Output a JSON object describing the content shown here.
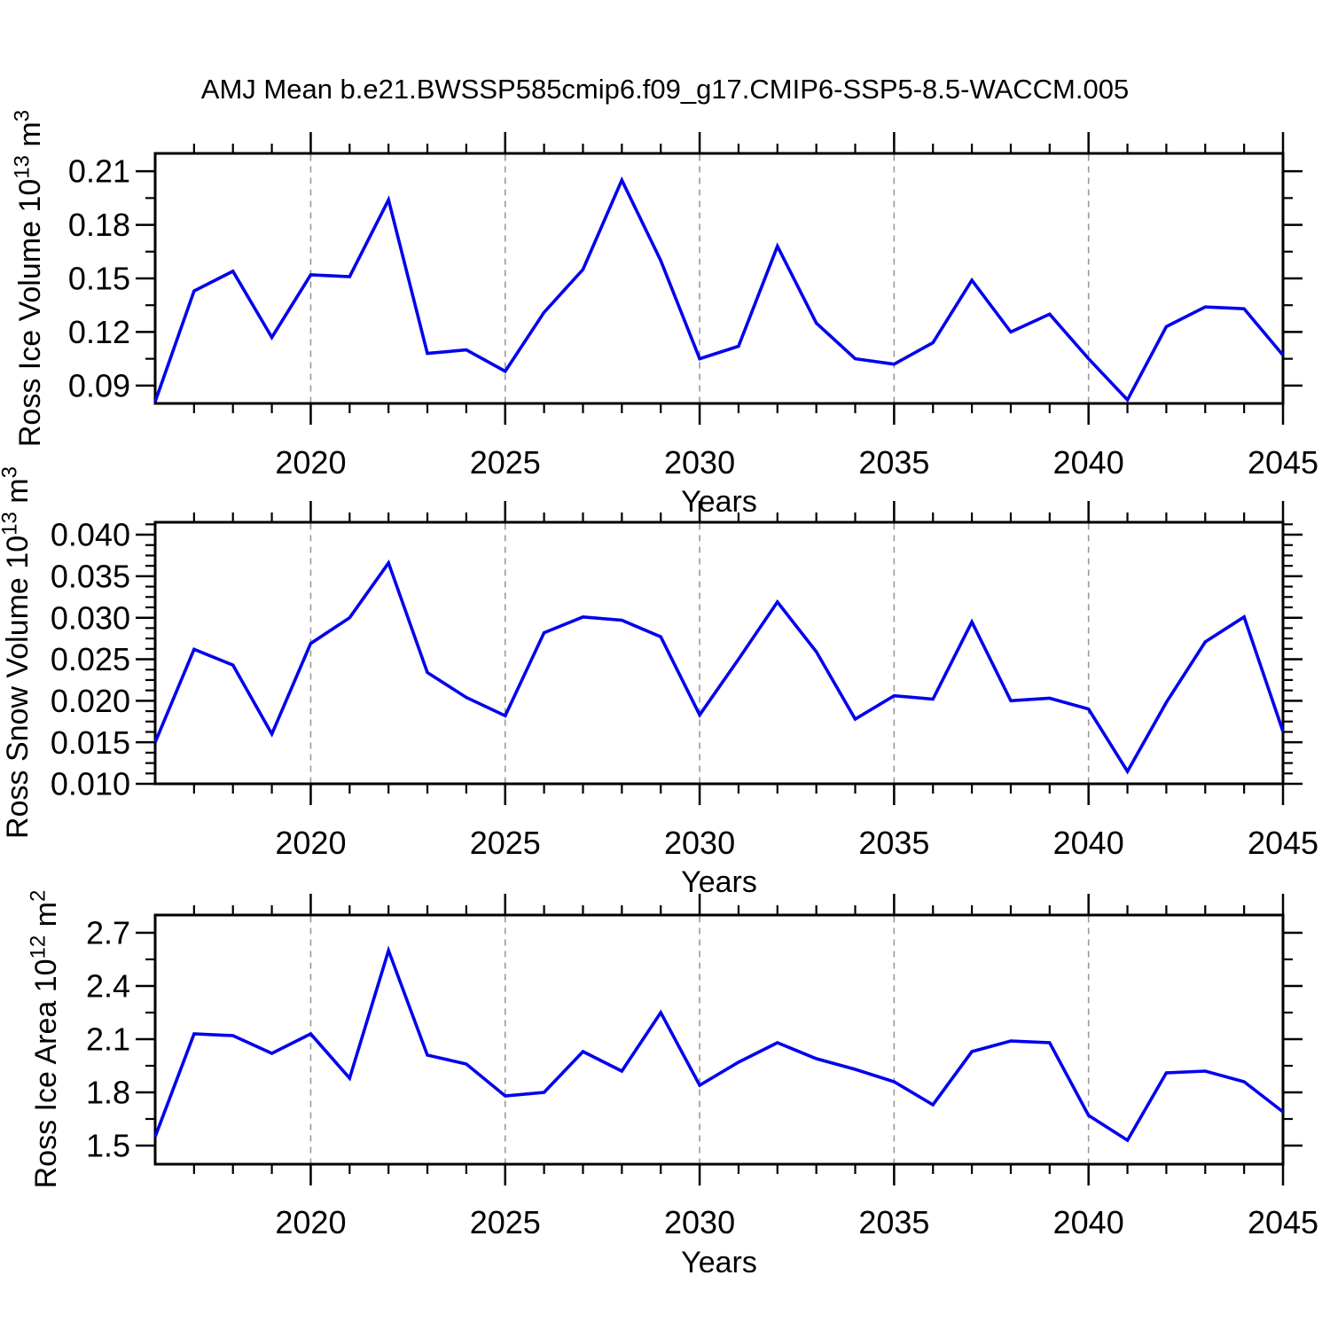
{
  "page": {
    "title": "AMJ Mean b.e21.BWSSP585cmip6.f09_g17.CMIP6-SSP5-8.5-WACCM.005",
    "background": "#ffffff"
  },
  "style": {
    "line_color": "#0000ee",
    "axis_color": "#000000",
    "grid_color": "#999999",
    "text_color": "#000000"
  },
  "chart_data": [
    {
      "type": "line",
      "name": "ross-ice-volume",
      "title": "AMJ Mean b.e21.BWSSP585cmip6.f09_g17.CMIP6-SSP5-8.5-WACCM.005",
      "xlabel": "Years",
      "ylabel": {
        "base": "Ross Ice Volume 10",
        "sup1": "13",
        "unit": " m",
        "sup2": "3",
        "plain": "Ross Ice Volume 10^13 m^3"
      },
      "xlim": [
        2016,
        2045
      ],
      "ylim": [
        0.08,
        0.22
      ],
      "x": [
        2016,
        2017,
        2018,
        2019,
        2020,
        2021,
        2022,
        2023,
        2024,
        2025,
        2026,
        2027,
        2028,
        2029,
        2030,
        2031,
        2032,
        2033,
        2034,
        2035,
        2036,
        2037,
        2038,
        2039,
        2040,
        2041,
        2042,
        2043,
        2044,
        2045
      ],
      "values": [
        0.081,
        0.143,
        0.154,
        0.117,
        0.152,
        0.151,
        0.194,
        0.108,
        0.11,
        0.098,
        0.131,
        0.155,
        0.205,
        0.16,
        0.105,
        0.112,
        0.168,
        0.125,
        0.105,
        0.102,
        0.114,
        0.149,
        0.12,
        0.13,
        0.105,
        0.082,
        0.123,
        0.134,
        0.133,
        0.107
      ],
      "yticks": [
        0.09,
        0.12,
        0.15,
        0.18,
        0.21
      ],
      "yticklabels": [
        "0.09",
        "0.12",
        "0.15",
        "0.18",
        "0.21"
      ],
      "yminorticks": [
        0.105,
        0.135,
        0.165,
        0.195
      ],
      "xticks": [
        2020,
        2025,
        2030,
        2035,
        2040,
        2045
      ],
      "xticklabels": [
        "2020",
        "2025",
        "2030",
        "2035",
        "2040",
        "2045"
      ],
      "grid_years": [
        2020,
        2025,
        2030,
        2035,
        2040
      ],
      "grid": "vertical-dashed",
      "legend": "none"
    },
    {
      "type": "line",
      "name": "ross-snow-volume",
      "title": "",
      "xlabel": "Years",
      "ylabel": {
        "base": "Ross Snow Volume 10",
        "sup1": "13",
        "unit": " m",
        "sup2": "3",
        "plain": "Ross Snow Volume 10^13 m^3"
      },
      "xlim": [
        2016,
        2045
      ],
      "ylim": [
        0.01,
        0.0415
      ],
      "x": [
        2016,
        2017,
        2018,
        2019,
        2020,
        2021,
        2022,
        2023,
        2024,
        2025,
        2026,
        2027,
        2028,
        2029,
        2030,
        2031,
        2032,
        2033,
        2034,
        2035,
        2036,
        2037,
        2038,
        2039,
        2040,
        2041,
        2042,
        2043,
        2044,
        2045
      ],
      "values": [
        0.015,
        0.0262,
        0.0243,
        0.016,
        0.0269,
        0.03,
        0.0366,
        0.0234,
        0.0204,
        0.0182,
        0.0282,
        0.0301,
        0.0297,
        0.0277,
        0.0183,
        0.025,
        0.0319,
        0.0259,
        0.0178,
        0.0206,
        0.0202,
        0.0295,
        0.02,
        0.0203,
        0.019,
        0.0115,
        0.0198,
        0.0271,
        0.0301,
        0.0163
      ],
      "yticks": [
        0.01,
        0.015,
        0.02,
        0.025,
        0.03,
        0.035,
        0.04
      ],
      "yticklabels": [
        "0.010",
        "0.015",
        "0.020",
        "0.025",
        "0.030",
        "0.035",
        "0.040"
      ],
      "yminorticks": [
        0.01125,
        0.0125,
        0.01375,
        0.01625,
        0.0175,
        0.01875,
        0.02125,
        0.0225,
        0.02375,
        0.02625,
        0.0275,
        0.02875,
        0.03125,
        0.0325,
        0.03375,
        0.03625,
        0.0375,
        0.03875,
        0.04125
      ],
      "xticks": [
        2020,
        2025,
        2030,
        2035,
        2040,
        2045
      ],
      "xticklabels": [
        "2020",
        "2025",
        "2030",
        "2035",
        "2040",
        "2045"
      ],
      "grid_years": [
        2020,
        2025,
        2030,
        2035,
        2040
      ],
      "grid": "vertical-dashed",
      "legend": "none"
    },
    {
      "type": "line",
      "name": "ross-ice-area",
      "title": "",
      "xlabel": "Years",
      "ylabel": {
        "base": "Ross Ice Area 10",
        "sup1": "12",
        "unit": " m",
        "sup2": "2",
        "plain": "Ross Ice Area 10^12 m^2"
      },
      "xlim": [
        2016,
        2045
      ],
      "ylim": [
        1.395,
        2.8
      ],
      "x": [
        2016,
        2017,
        2018,
        2019,
        2020,
        2021,
        2022,
        2023,
        2024,
        2025,
        2026,
        2027,
        2028,
        2029,
        2030,
        2031,
        2032,
        2033,
        2034,
        2035,
        2036,
        2037,
        2038,
        2039,
        2040,
        2041,
        2042,
        2043,
        2044,
        2045
      ],
      "values": [
        1.55,
        2.13,
        2.12,
        2.02,
        2.13,
        1.88,
        2.6,
        2.01,
        1.96,
        1.78,
        1.8,
        2.03,
        1.92,
        2.25,
        1.84,
        1.97,
        2.08,
        1.99,
        1.93,
        1.86,
        1.73,
        2.03,
        2.09,
        2.08,
        1.67,
        1.53,
        1.91,
        1.92,
        1.86,
        1.69
      ],
      "yticks": [
        1.5,
        1.8,
        2.1,
        2.4,
        2.7
      ],
      "yticklabels": [
        "1.5",
        "1.8",
        "2.1",
        "2.4",
        "2.7"
      ],
      "yminorticks": [
        1.65,
        1.95,
        2.25,
        2.55
      ],
      "xticks": [
        2020,
        2025,
        2030,
        2035,
        2040,
        2045
      ],
      "xticklabels": [
        "2020",
        "2025",
        "2030",
        "2035",
        "2040",
        "2045"
      ],
      "grid_years": [
        2020,
        2025,
        2030,
        2035,
        2040
      ],
      "grid": "vertical-dashed",
      "legend": "none"
    }
  ]
}
